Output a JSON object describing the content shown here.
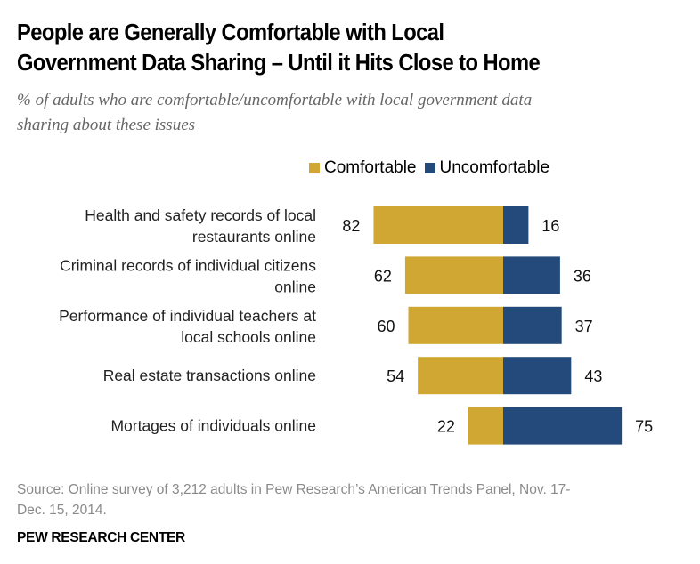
{
  "title_line1": "People are Generally Comfortable with Local",
  "title_line2": "Government Data Sharing – Until it Hits Close to Home",
  "subtitle_line1": "% of adults who are comfortable/uncomfortable with local government data",
  "subtitle_line2": "sharing about these issues",
  "source_line1": "Source: Online survey of 3,212 adults in Pew Research’s American Trends Panel, Nov. 17-",
  "source_line2": "Dec. 15, 2014.",
  "org": "PEW RESEARCH CENTER",
  "chart_data": {
    "type": "bar",
    "orientation": "horizontal-diverging",
    "title": "People are Generally Comfortable with Local Government Data Sharing – Until it Hits Close to Home",
    "subtitle": "% of adults who are comfortable/uncomfortable with local government data sharing about these issues",
    "xlabel": "",
    "ylabel": "",
    "legend_position": "top-right",
    "grid": false,
    "categories": [
      [
        "Health and safety records of local",
        "restaurants online"
      ],
      [
        "Criminal records of individual citizens",
        "online"
      ],
      [
        "Performance of individual teachers at",
        "local schools online"
      ],
      [
        "Real estate transactions online"
      ],
      [
        "Mortages of individuals online"
      ]
    ],
    "series": [
      {
        "name": "Comfortable",
        "color": "#D1A733",
        "values": [
          82,
          62,
          60,
          54,
          22
        ]
      },
      {
        "name": "Uncomfortable",
        "color": "#234A7A",
        "values": [
          16,
          36,
          37,
          43,
          75
        ]
      }
    ]
  }
}
